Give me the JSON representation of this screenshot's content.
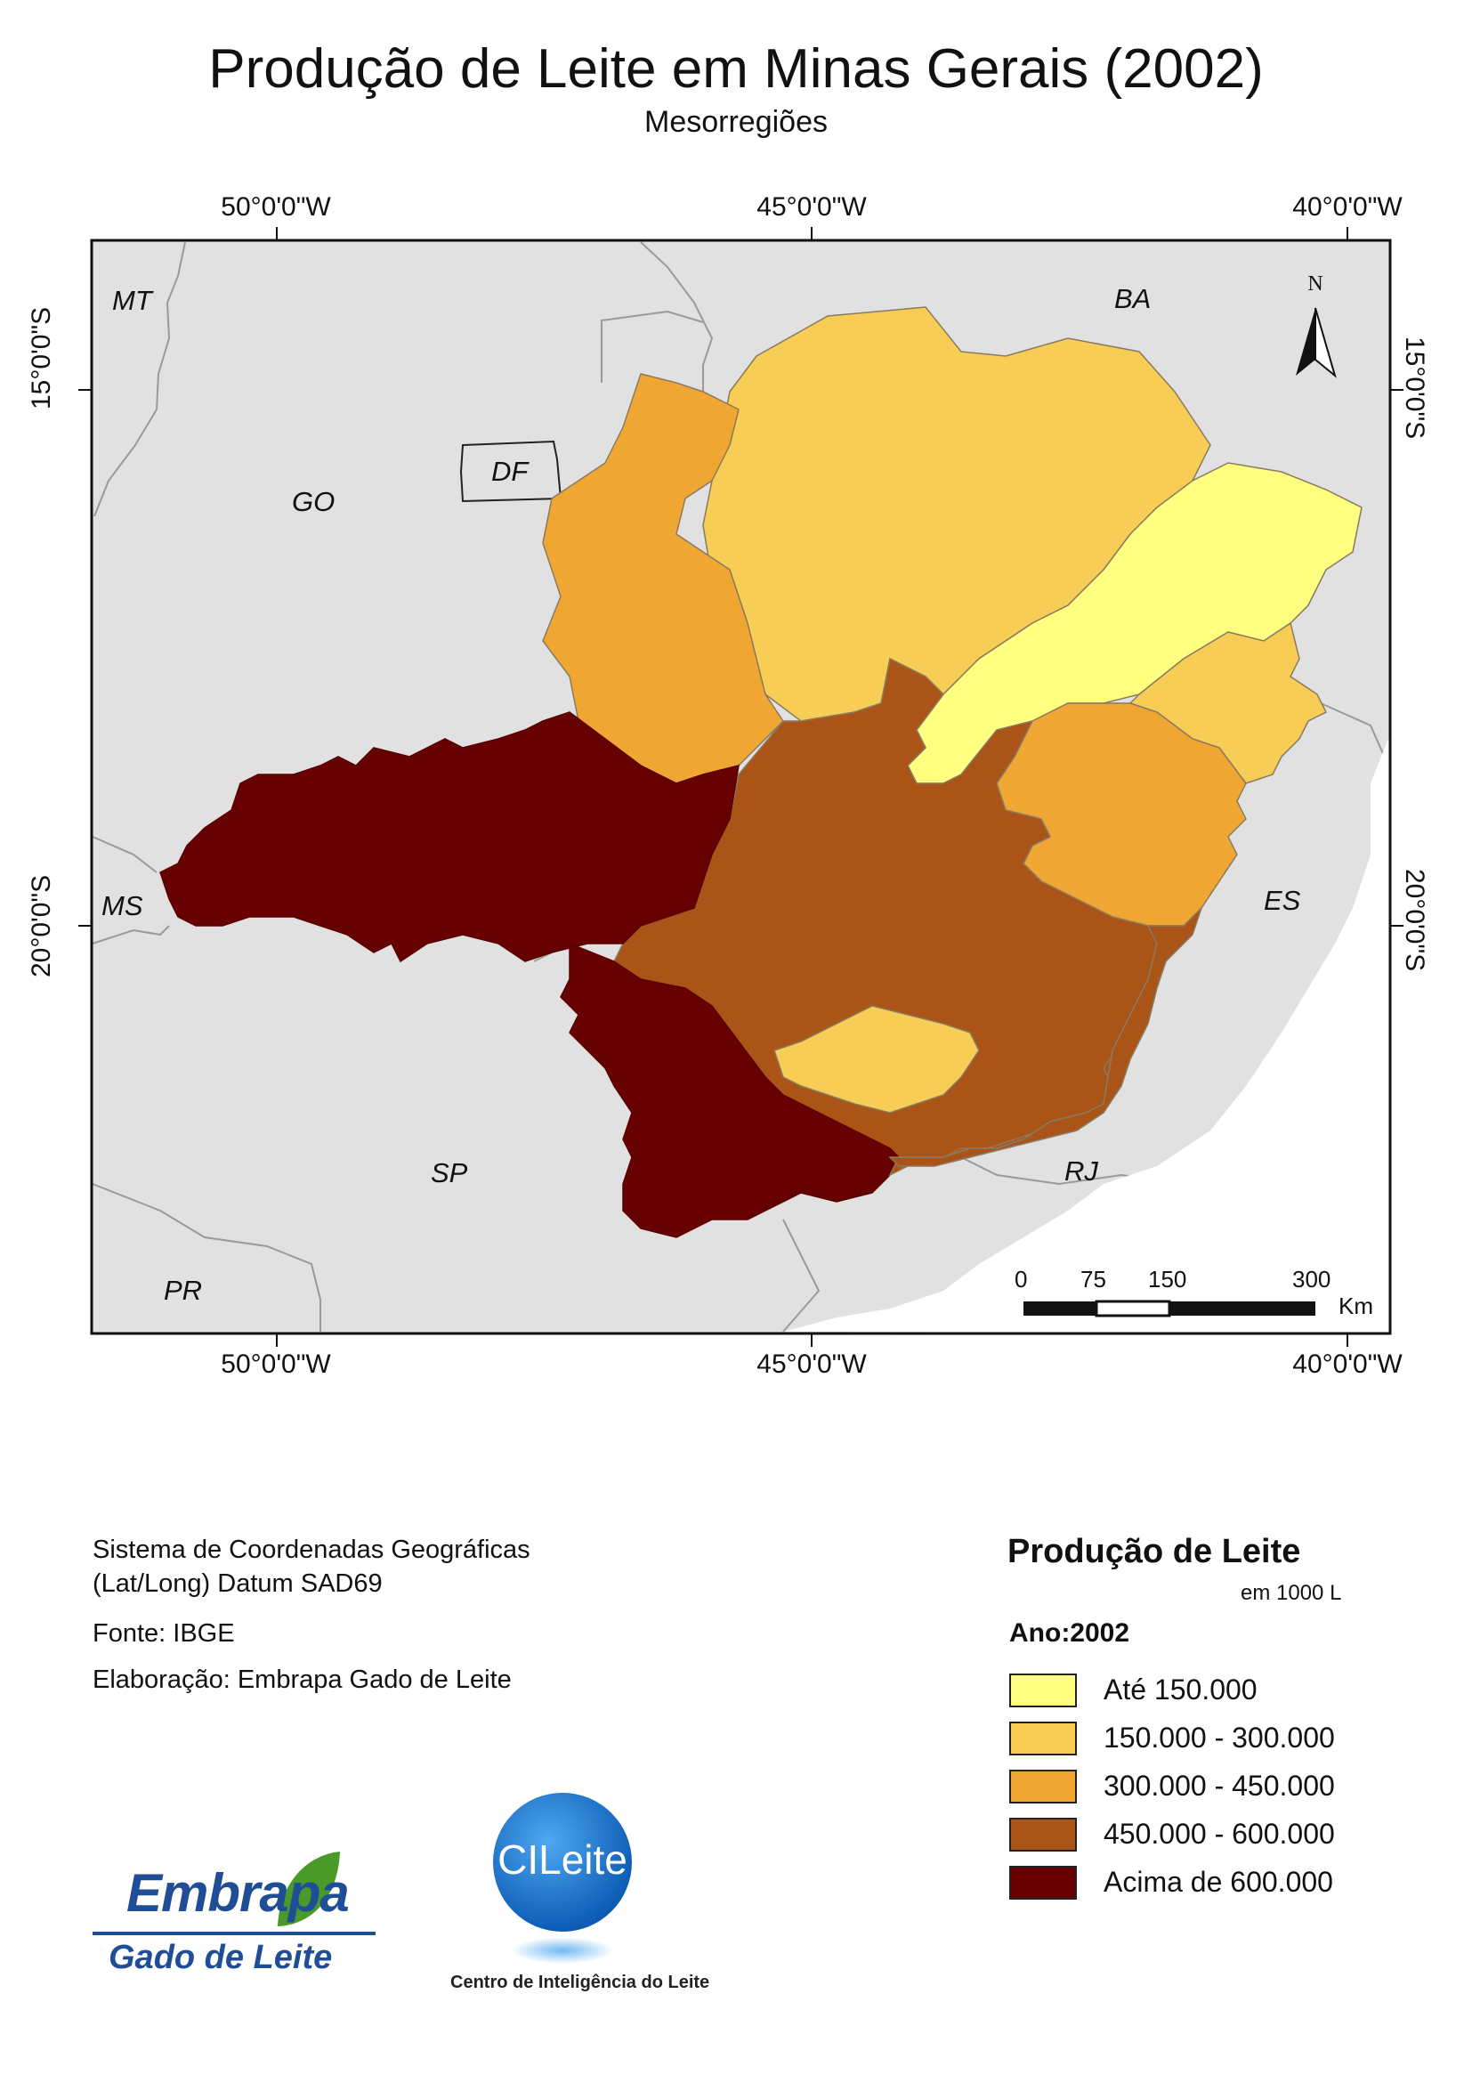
{
  "title": "Produção de Leite em Minas Gerais (2002)",
  "subtitle": "Mesorregiões",
  "graticule": {
    "longitudes": [
      "50°0'0\"W",
      "45°0'0\"W",
      "40°0'0\"W"
    ],
    "latitudes": [
      "15°0'0\"S",
      "20°0'0\"S"
    ]
  },
  "states": {
    "mt": "MT",
    "ba": "BA",
    "go": "GO",
    "df": "DF",
    "ms": "MS",
    "es": "ES",
    "sp": "SP",
    "rj": "RJ",
    "pr": "PR"
  },
  "north_arrow": "N",
  "scale_bar": {
    "labels": [
      "0",
      "75",
      "150",
      "300"
    ],
    "unit": "Km"
  },
  "info": {
    "line1": "Sistema de Coordenadas Geográficas",
    "line2": "(Lat/Long) Datum SAD69",
    "source": "Fonte: IBGE",
    "author": "Elaboração: Embrapa Gado de Leite"
  },
  "legend": {
    "title": "Produção de Leite",
    "unit": "em 1000 L",
    "year_label": "Ano:2002",
    "classes": [
      {
        "label": "Até 150.000",
        "color": "#ffff80"
      },
      {
        "label": "150.000 - 300.000",
        "color": "#f7cd55"
      },
      {
        "label": "300.000 - 450.000",
        "color": "#f0a632"
      },
      {
        "label": "450.000 - 600.000",
        "color": "#ab5417"
      },
      {
        "label": "Acima de 600.000",
        "color": "#670000"
      }
    ]
  },
  "logos": {
    "embrapa": {
      "name": "Embrapa",
      "sub": "Gado de Leite"
    },
    "cileite": {
      "name": "CILeite",
      "sub": "Centro de Inteligência do Leite"
    }
  }
}
